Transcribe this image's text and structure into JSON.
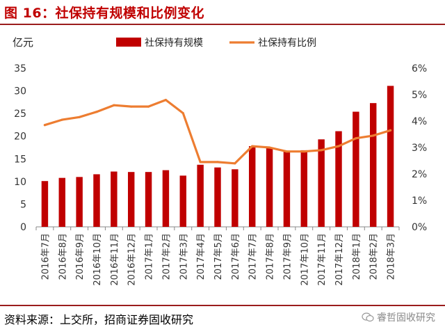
{
  "header": {
    "title": "图 16：社保持有规模和比例变化"
  },
  "footer": {
    "source": "资料来源：上交所，招商证券固收研究",
    "watermark": "睿哲固收研究"
  },
  "chart_data": {
    "type": "bar+line",
    "categories": [
      "2016年7月",
      "2016年8月",
      "2016年9月",
      "2016年10月",
      "2016年11月",
      "2016年12月",
      "2017年1月",
      "2017年2月",
      "2017年3月",
      "2017年4月",
      "2017年5月",
      "2017年6月",
      "2017年7月",
      "2017年8月",
      "2017年9月",
      "2017年10月",
      "2017年11月",
      "2017年12月",
      "2018年1月",
      "2018年2月",
      "2018年3月"
    ],
    "series": [
      {
        "name": "社保持有规模",
        "type": "bar",
        "axis": "left",
        "color": "#c00000",
        "values": [
          10.1,
          10.8,
          11.0,
          11.6,
          12.2,
          12.1,
          12.1,
          12.5,
          11.3,
          13.7,
          13.1,
          12.7,
          17.8,
          17.5,
          16.6,
          16.9,
          19.3,
          21.1,
          25.4,
          27.3,
          31.1
        ]
      },
      {
        "name": "社保持有比例",
        "type": "line",
        "axis": "right",
        "color": "#ed7d31",
        "values": [
          3.85,
          4.05,
          4.15,
          4.35,
          4.6,
          4.55,
          4.55,
          4.8,
          4.3,
          2.45,
          2.45,
          2.4,
          3.05,
          3.0,
          2.85,
          2.85,
          2.9,
          3.05,
          3.35,
          3.45,
          3.65
        ]
      }
    ],
    "y_left": {
      "label": "亿元",
      "min": 0,
      "max": 35,
      "ticks": [
        "0",
        "5",
        "10",
        "15",
        "20",
        "25",
        "30",
        "35"
      ]
    },
    "y_right": {
      "min": 0,
      "max": 6,
      "ticks": [
        "0%",
        "1%",
        "2%",
        "3%",
        "4%",
        "5%",
        "6%"
      ]
    },
    "legend_position": "top",
    "grid": false
  }
}
